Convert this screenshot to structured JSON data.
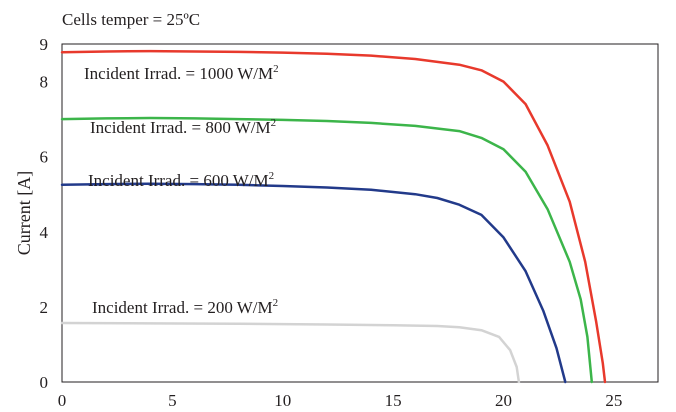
{
  "header_note": "Cells temper = 25ºC",
  "chart_data": {
    "type": "line",
    "title": "",
    "xlabel": "",
    "ylabel": "Current [A]",
    "xlim": [
      0,
      27
    ],
    "ylim": [
      0,
      9
    ],
    "xticks": [
      0,
      5,
      10,
      15,
      20,
      25
    ],
    "yticks": [
      0,
      2,
      4,
      6,
      8
    ],
    "grid": false,
    "legend": "none",
    "series": [
      {
        "label_text": "Incident Irrad. = 1000 W/M",
        "label_sup": "2",
        "color": "#e8392c",
        "points": [
          [
            0,
            8.78
          ],
          [
            2,
            8.8
          ],
          [
            4,
            8.81
          ],
          [
            6,
            8.8
          ],
          [
            8,
            8.79
          ],
          [
            10,
            8.77
          ],
          [
            12,
            8.74
          ],
          [
            14,
            8.69
          ],
          [
            16,
            8.6
          ],
          [
            18,
            8.45
          ],
          [
            19,
            8.3
          ],
          [
            20,
            8.0
          ],
          [
            21,
            7.4
          ],
          [
            22,
            6.3
          ],
          [
            23,
            4.8
          ],
          [
            23.7,
            3.2
          ],
          [
            24.2,
            1.6
          ],
          [
            24.5,
            0.5
          ],
          [
            24.6,
            0
          ]
        ]
      },
      {
        "label_text": "Incident Irrad. = 800 W/M",
        "label_sup": "2",
        "color": "#3cb54a",
        "points": [
          [
            0,
            7.0
          ],
          [
            2,
            7.02
          ],
          [
            4,
            7.03
          ],
          [
            6,
            7.02
          ],
          [
            8,
            7.0
          ],
          [
            10,
            6.98
          ],
          [
            12,
            6.95
          ],
          [
            14,
            6.9
          ],
          [
            16,
            6.82
          ],
          [
            18,
            6.68
          ],
          [
            19,
            6.5
          ],
          [
            20,
            6.2
          ],
          [
            21,
            5.6
          ],
          [
            22,
            4.6
          ],
          [
            23,
            3.2
          ],
          [
            23.5,
            2.2
          ],
          [
            23.8,
            1.2
          ],
          [
            24.0,
            0
          ]
        ]
      },
      {
        "label_text": "Incident Irrad. = 600 W/M",
        "label_sup": "2",
        "color": "#223a8a",
        "points": [
          [
            0,
            5.25
          ],
          [
            2,
            5.27
          ],
          [
            4,
            5.28
          ],
          [
            6,
            5.27
          ],
          [
            8,
            5.25
          ],
          [
            10,
            5.22
          ],
          [
            12,
            5.18
          ],
          [
            14,
            5.12
          ],
          [
            16,
            5.0
          ],
          [
            17,
            4.9
          ],
          [
            18,
            4.72
          ],
          [
            19,
            4.45
          ],
          [
            20,
            3.85
          ],
          [
            21,
            2.95
          ],
          [
            21.8,
            1.9
          ],
          [
            22.4,
            0.9
          ],
          [
            22.8,
            0
          ]
        ]
      },
      {
        "label_text": "Incident Irrad. = 200 W/M",
        "label_sup": "2",
        "color": "#d3d3d3",
        "points": [
          [
            0,
            1.57
          ],
          [
            4,
            1.56
          ],
          [
            8,
            1.55
          ],
          [
            12,
            1.53
          ],
          [
            15,
            1.51
          ],
          [
            17,
            1.49
          ],
          [
            18,
            1.46
          ],
          [
            19,
            1.38
          ],
          [
            19.8,
            1.2
          ],
          [
            20.3,
            0.85
          ],
          [
            20.6,
            0.4
          ],
          [
            20.7,
            0
          ]
        ]
      }
    ]
  }
}
